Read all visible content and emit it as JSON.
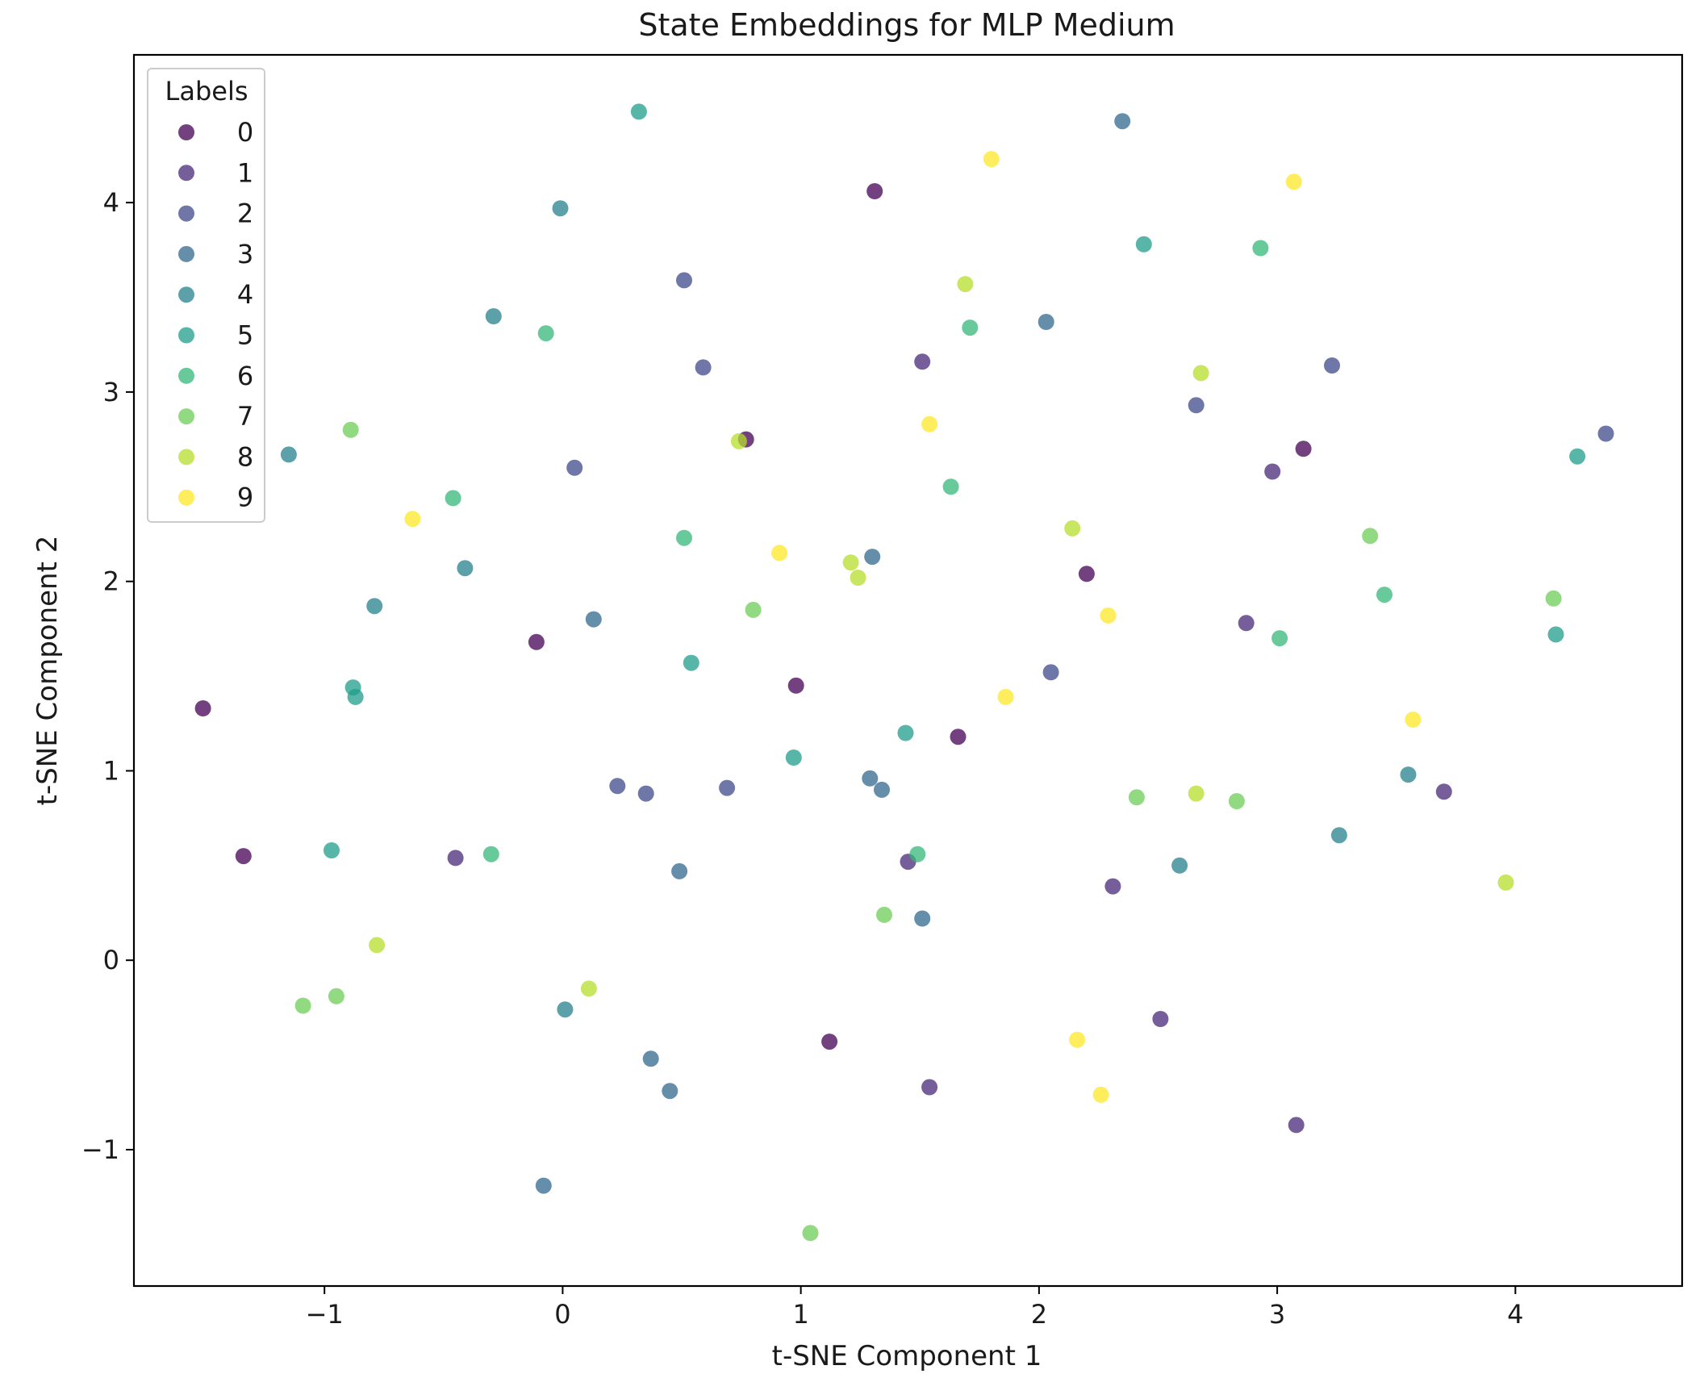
{
  "chart_data": {
    "type": "scatter",
    "title": "State Embeddings for MLP Medium",
    "xlabel": "t-SNE Component 1",
    "ylabel": "t-SNE Component 2",
    "xlim": [
      -1.8,
      4.7
    ],
    "ylim": [
      -1.72,
      4.78
    ],
    "xticks": [
      -1,
      0,
      1,
      2,
      3,
      4
    ],
    "yticks": [
      -1,
      0,
      1,
      2,
      3,
      4
    ],
    "xtick_labels": [
      "−1",
      "0",
      "1",
      "2",
      "3",
      "4"
    ],
    "ytick_labels": [
      "−1",
      "0",
      "1",
      "2",
      "3",
      "4"
    ],
    "grid": false,
    "legend": {
      "title": "Labels",
      "placement": "top-left"
    },
    "series": [
      {
        "name": "0",
        "color": "#440154",
        "points": [
          [
            1.31,
            4.06
          ],
          [
            0.77,
            2.75
          ],
          [
            3.11,
            2.7
          ],
          [
            2.2,
            2.04
          ],
          [
            -0.11,
            1.68
          ],
          [
            -1.51,
            1.33
          ],
          [
            0.98,
            1.45
          ],
          [
            1.66,
            1.18
          ],
          [
            -1.34,
            0.55
          ],
          [
            1.12,
            -0.43
          ]
        ]
      },
      {
        "name": "1",
        "color": "#482878",
        "points": [
          [
            1.51,
            3.16
          ],
          [
            2.98,
            2.58
          ],
          [
            2.87,
            1.78
          ],
          [
            3.7,
            0.89
          ],
          [
            -0.45,
            0.54
          ],
          [
            1.45,
            0.52
          ],
          [
            2.31,
            0.39
          ],
          [
            2.51,
            -0.31
          ],
          [
            1.54,
            -0.67
          ],
          [
            3.08,
            -0.87
          ]
        ]
      },
      {
        "name": "2",
        "color": "#3e4989",
        "points": [
          [
            0.51,
            3.59
          ],
          [
            0.59,
            3.13
          ],
          [
            2.66,
            2.93
          ],
          [
            3.23,
            3.14
          ],
          [
            4.38,
            2.78
          ],
          [
            0.05,
            2.6
          ],
          [
            2.05,
            1.52
          ],
          [
            0.23,
            0.92
          ],
          [
            0.35,
            0.88
          ],
          [
            0.69,
            0.91
          ]
        ]
      },
      {
        "name": "3",
        "color": "#31688e",
        "points": [
          [
            2.35,
            4.43
          ],
          [
            2.03,
            3.37
          ],
          [
            1.3,
            2.13
          ],
          [
            0.13,
            1.8
          ],
          [
            1.29,
            0.96
          ],
          [
            1.34,
            0.9
          ],
          [
            0.49,
            0.47
          ],
          [
            1.51,
            0.22
          ],
          [
            0.37,
            -0.52
          ],
          [
            0.45,
            -0.69
          ],
          [
            -0.08,
            -1.19
          ]
        ]
      },
      {
        "name": "4",
        "color": "#26828e",
        "points": [
          [
            -0.01,
            3.97
          ],
          [
            -0.29,
            3.4
          ],
          [
            -1.15,
            2.67
          ],
          [
            -0.41,
            2.07
          ],
          [
            -0.79,
            1.87
          ],
          [
            3.55,
            0.98
          ],
          [
            3.26,
            0.66
          ],
          [
            2.59,
            0.5
          ],
          [
            0.01,
            -0.26
          ]
        ]
      },
      {
        "name": "5",
        "color": "#1f9e89",
        "points": [
          [
            0.32,
            4.48
          ],
          [
            2.44,
            3.78
          ],
          [
            4.26,
            2.66
          ],
          [
            4.17,
            1.72
          ],
          [
            0.54,
            1.57
          ],
          [
            -0.88,
            1.44
          ],
          [
            -0.87,
            1.39
          ],
          [
            1.44,
            1.2
          ],
          [
            0.97,
            1.07
          ],
          [
            -0.97,
            0.58
          ]
        ]
      },
      {
        "name": "6",
        "color": "#35b779",
        "points": [
          [
            2.93,
            3.76
          ],
          [
            1.71,
            3.34
          ],
          [
            -0.07,
            3.31
          ],
          [
            1.63,
            2.5
          ],
          [
            -0.46,
            2.44
          ],
          [
            0.51,
            2.23
          ],
          [
            3.45,
            1.93
          ],
          [
            3.01,
            1.7
          ],
          [
            -0.3,
            0.56
          ],
          [
            1.49,
            0.56
          ]
        ]
      },
      {
        "name": "7",
        "color": "#6ece58",
        "points": [
          [
            -0.89,
            2.8
          ],
          [
            3.39,
            2.24
          ],
          [
            4.16,
            1.91
          ],
          [
            0.8,
            1.85
          ],
          [
            2.41,
            0.86
          ],
          [
            2.83,
            0.84
          ],
          [
            1.35,
            0.24
          ],
          [
            -1.09,
            -0.24
          ],
          [
            -0.95,
            -0.19
          ],
          [
            1.04,
            -1.44
          ]
        ]
      },
      {
        "name": "8",
        "color": "#b5de2b",
        "points": [
          [
            1.69,
            3.57
          ],
          [
            2.68,
            3.1
          ],
          [
            0.74,
            2.74
          ],
          [
            2.14,
            2.28
          ],
          [
            1.21,
            2.1
          ],
          [
            1.24,
            2.02
          ],
          [
            2.66,
            0.88
          ],
          [
            3.96,
            0.41
          ],
          [
            -0.78,
            0.08
          ],
          [
            0.11,
            -0.15
          ]
        ]
      },
      {
        "name": "9",
        "color": "#fde725",
        "points": [
          [
            1.8,
            4.23
          ],
          [
            3.07,
            4.11
          ],
          [
            1.54,
            2.83
          ],
          [
            -0.63,
            2.33
          ],
          [
            0.91,
            2.15
          ],
          [
            2.29,
            1.82
          ],
          [
            1.86,
            1.39
          ],
          [
            3.57,
            1.27
          ],
          [
            2.16,
            -0.42
          ],
          [
            2.26,
            -0.71
          ]
        ]
      }
    ]
  }
}
